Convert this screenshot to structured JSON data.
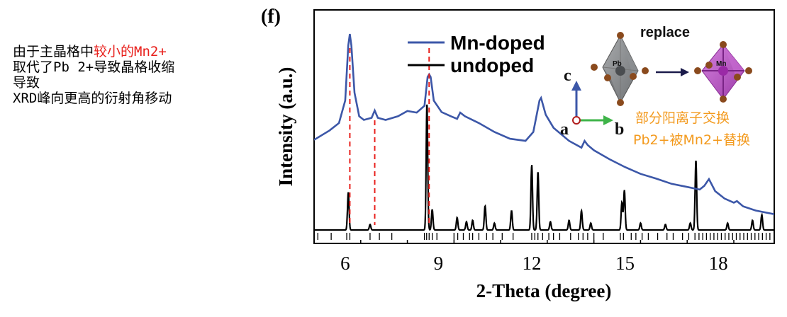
{
  "annotation": {
    "line1_prefix": "由于主晶格中",
    "line1_highlight": "较小的Mn2+",
    "line2": "取代了Pb 2+导致晶格收缩",
    "line3": "导致",
    "line4": "XRD峰向更高的衍射角移动",
    "highlight_color": "#e8201c"
  },
  "figure": {
    "panel_label": "(f)",
    "inset_title": "replace",
    "atom_left": "Pb",
    "atom_right": "Mn",
    "axis_c": "c",
    "axis_b": "b",
    "axis_a": "a",
    "inset_note_line1": "部分阳离子交换",
    "inset_note_line2": "Pb2+被Mn2+替换",
    "inset_note_color": "#f39a1e"
  },
  "chart_data": {
    "type": "line",
    "xlabel": "2-Theta (degree)",
    "ylabel": "Intensity (a.u.)",
    "xlim": [
      5.0,
      19.8
    ],
    "xticks": [
      6,
      9,
      12,
      15,
      18
    ],
    "legend_position": "top",
    "series": [
      {
        "name": "Mn-doped",
        "color": "#3c57a8",
        "x": [
          5.0,
          5.5,
          5.8,
          6.0,
          6.1,
          6.15,
          6.2,
          6.3,
          6.45,
          6.6,
          6.85,
          6.95,
          7.05,
          7.3,
          7.7,
          8.0,
          8.3,
          8.55,
          8.65,
          8.7,
          8.75,
          8.85,
          9.1,
          9.4,
          9.6,
          9.7,
          9.85,
          10.3,
          10.8,
          11.3,
          11.8,
          12.05,
          12.25,
          12.3,
          12.45,
          12.7,
          13.2,
          13.6,
          13.7,
          13.8,
          14.0,
          14.5,
          15.0,
          15.5,
          16.0,
          16.5,
          17.0,
          17.4,
          17.55,
          17.7,
          17.9,
          18.2,
          18.5,
          18.6,
          18.8,
          19.2,
          19.8
        ],
        "y": [
          160,
          178,
          192,
          235,
          340,
          362,
          340,
          250,
          205,
          198,
          202,
          216,
          202,
          198,
          205,
          215,
          212,
          225,
          280,
          285,
          280,
          235,
          213,
          205,
          200,
          212,
          205,
          192,
          175,
          162,
          158,
          175,
          235,
          240,
          208,
          183,
          158,
          145,
          158,
          150,
          140,
          123,
          108,
          95,
          86,
          76,
          70,
          65,
          72,
          85,
          62,
          48,
          40,
          43,
          33,
          25,
          18
        ]
      },
      {
        "name": "undoped",
        "color": "#000000",
        "peaks": [
          {
            "x": 6.1,
            "y": 55
          },
          {
            "x": 6.8,
            "y": 8
          },
          {
            "x": 8.63,
            "y": 185
          },
          {
            "x": 8.8,
            "y": 30
          },
          {
            "x": 9.6,
            "y": 18
          },
          {
            "x": 9.9,
            "y": 12
          },
          {
            "x": 10.1,
            "y": 14
          },
          {
            "x": 10.5,
            "y": 35
          },
          {
            "x": 10.8,
            "y": 10
          },
          {
            "x": 11.35,
            "y": 28
          },
          {
            "x": 12.0,
            "y": 95
          },
          {
            "x": 12.2,
            "y": 85
          },
          {
            "x": 12.6,
            "y": 12
          },
          {
            "x": 13.2,
            "y": 14
          },
          {
            "x": 13.6,
            "y": 28
          },
          {
            "x": 13.9,
            "y": 10
          },
          {
            "x": 14.9,
            "y": 40
          },
          {
            "x": 14.98,
            "y": 58
          },
          {
            "x": 15.5,
            "y": 10
          },
          {
            "x": 16.3,
            "y": 8
          },
          {
            "x": 17.1,
            "y": 10
          },
          {
            "x": 17.28,
            "y": 102
          },
          {
            "x": 18.3,
            "y": 10
          },
          {
            "x": 19.1,
            "y": 14
          },
          {
            "x": 19.4,
            "y": 22
          }
        ]
      }
    ],
    "reference_lines_x": [
      6.15,
      6.95,
      8.7
    ],
    "reference_line_color": "#e8201c",
    "reference_ticks_x": [
      5.12,
      5.55,
      6.05,
      6.15,
      6.8,
      7.1,
      7.5,
      8.55,
      8.62,
      8.7,
      8.8,
      8.95,
      9.5,
      9.62,
      9.8,
      10.0,
      10.1,
      10.3,
      10.55,
      10.75,
      11.05,
      11.4,
      12.0,
      12.1,
      12.2,
      12.35,
      12.55,
      12.7,
      12.9,
      13.25,
      13.5,
      13.65,
      13.8,
      14.0,
      14.3,
      14.85,
      14.95,
      15.2,
      15.35,
      15.55,
      15.75,
      16.05,
      16.35,
      16.55,
      16.85,
      17.05,
      17.25,
      17.38,
      17.5,
      17.62,
      17.74,
      17.86,
      17.98,
      18.1,
      18.22,
      18.34,
      18.46,
      18.58,
      18.7,
      18.82,
      18.94,
      19.06,
      19.18,
      19.3,
      19.42,
      19.54,
      19.66
    ]
  }
}
